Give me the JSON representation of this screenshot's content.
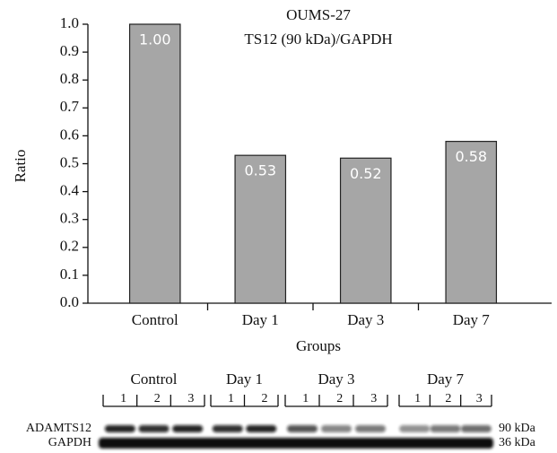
{
  "chart_data": {
    "type": "bar",
    "title": "OUMS-27",
    "subtitle": "TS12 (90 kDa)/GAPDH",
    "xlabel": "Groups",
    "ylabel": "Ratio",
    "categories": [
      "Control",
      "Day 1",
      "Day 3",
      "Day 7"
    ],
    "values": [
      1.0,
      0.53,
      0.52,
      0.58
    ],
    "value_labels": [
      "1.00",
      "0.53",
      "0.52",
      "0.58"
    ],
    "color": "#a6a6a6",
    "ylim": [
      0,
      1
    ],
    "yticks": [
      {
        "value": 0,
        "label": "0.0"
      },
      0.1,
      0.2,
      0.3,
      0.4,
      0.5,
      0.6,
      0.7,
      0.8,
      0.9,
      {
        "value": 1,
        "label": "1.0"
      }
    ]
  },
  "blot": {
    "groups": [
      {
        "label": "Control",
        "lanes": [
          "1",
          "2",
          "3"
        ]
      },
      {
        "label": "Day 1",
        "lanes": [
          "1",
          "2"
        ]
      },
      {
        "label": "Day 3",
        "lanes": [
          "1",
          "2",
          "3"
        ]
      },
      {
        "label": "Day 7",
        "lanes": [
          "1",
          "2",
          "3"
        ]
      }
    ],
    "rows": [
      {
        "label": "ADAMTS12",
        "size": "90 kDa"
      },
      {
        "label": "GAPDH",
        "size": "36 kDa"
      }
    ]
  }
}
